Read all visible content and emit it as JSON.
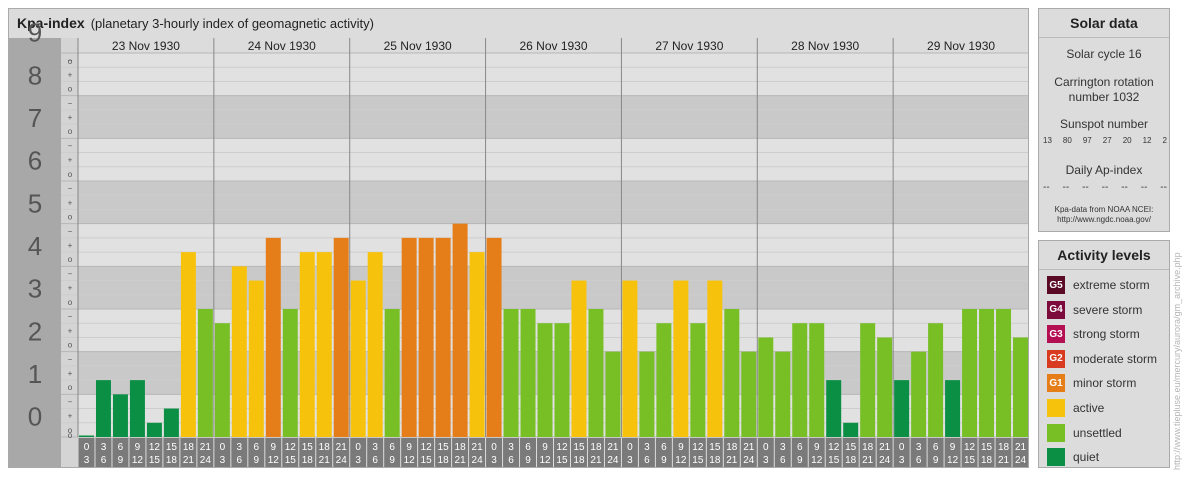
{
  "main": {
    "title": "Kpa-index",
    "subtitle": "(planetary 3-hourly index of geomagnetic activity)"
  },
  "chart_data": {
    "type": "bar",
    "ylim": [
      0,
      9
    ],
    "y_ticks": [
      "0",
      "1",
      "2",
      "3",
      "4",
      "5",
      "6",
      "7",
      "8",
      "9"
    ],
    "thirds_labels": [
      "o",
      "+",
      "−"
    ],
    "days": [
      "23 Nov 1930",
      "24 Nov 1930",
      "25 Nov 1930",
      "26 Nov 1930",
      "27 Nov 1930",
      "28 Nov 1930",
      "29 Nov 1930"
    ],
    "interval_starts": [
      "0",
      "3",
      "6",
      "9",
      "12",
      "15",
      "18",
      "21"
    ],
    "interval_ends": [
      "3",
      "6",
      "9",
      "12",
      "15",
      "18",
      "21",
      "24"
    ],
    "values": [
      0.0,
      1.333,
      1.0,
      1.333,
      0.333,
      0.667,
      4.333,
      3.0,
      2.667,
      4.0,
      3.667,
      4.667,
      3.0,
      4.333,
      4.333,
      4.667,
      3.667,
      4.333,
      3.0,
      4.667,
      4.667,
      4.667,
      5.0,
      4.333,
      4.667,
      3.0,
      3.0,
      2.667,
      2.667,
      3.667,
      3.0,
      2.0,
      3.667,
      2.0,
      2.667,
      3.667,
      2.667,
      3.667,
      3.0,
      2.0,
      2.333,
      2.0,
      2.667,
      2.667,
      1.333,
      0.333,
      2.667,
      2.333,
      1.333,
      2.0,
      2.667,
      1.333,
      3.0,
      3.0,
      3.0,
      2.333
    ],
    "colors": {
      "quiet": "#0b8f45",
      "unsettled": "#77bf25",
      "active": "#f7c20c",
      "minor": "#e57e19",
      "band_dark": "#c9c9c9",
      "band_light": "#e1e1e1",
      "axis_bg": "#a8a8a8",
      "interval_bg": "#7a7a7a"
    },
    "grid": true
  },
  "solar": {
    "title": "Solar data",
    "cycle": "Solar cycle 16",
    "carrington_line1": "Carrington rotation",
    "carrington_line2": "number 1032",
    "sunspot_label": "Sunspot number",
    "sunspots": [
      "13",
      "80",
      "97",
      "27",
      "20",
      "12",
      "2"
    ],
    "ap_label": "Daily Ap-index",
    "ap_values": [
      "--",
      "--",
      "--",
      "--",
      "--",
      "--",
      "--"
    ],
    "source_line1": "Kpa-data from NOAA NCEI:",
    "source_line2": "http://www.ngdc.noaa.gov/"
  },
  "activity": {
    "title": "Activity levels",
    "items": [
      {
        "badge": "G5",
        "label": "extreme storm",
        "color": "#5a0a24"
      },
      {
        "badge": "G4",
        "label": "severe storm",
        "color": "#7c0a3d"
      },
      {
        "badge": "G3",
        "label": "strong storm",
        "color": "#b50f54"
      },
      {
        "badge": "G2",
        "label": "moderate storm",
        "color": "#d83b1f"
      },
      {
        "badge": "G1",
        "label": "minor storm",
        "color": "#e57e19"
      },
      {
        "badge": "",
        "label": "active",
        "color": "#f7c20c"
      },
      {
        "badge": "",
        "label": "unsettled",
        "color": "#77bf25"
      },
      {
        "badge": "",
        "label": "quiet",
        "color": "#0b8f45"
      }
    ]
  },
  "watermark": "http://www.tiepluse.eu/mercury/aurora/gm_archive.php"
}
